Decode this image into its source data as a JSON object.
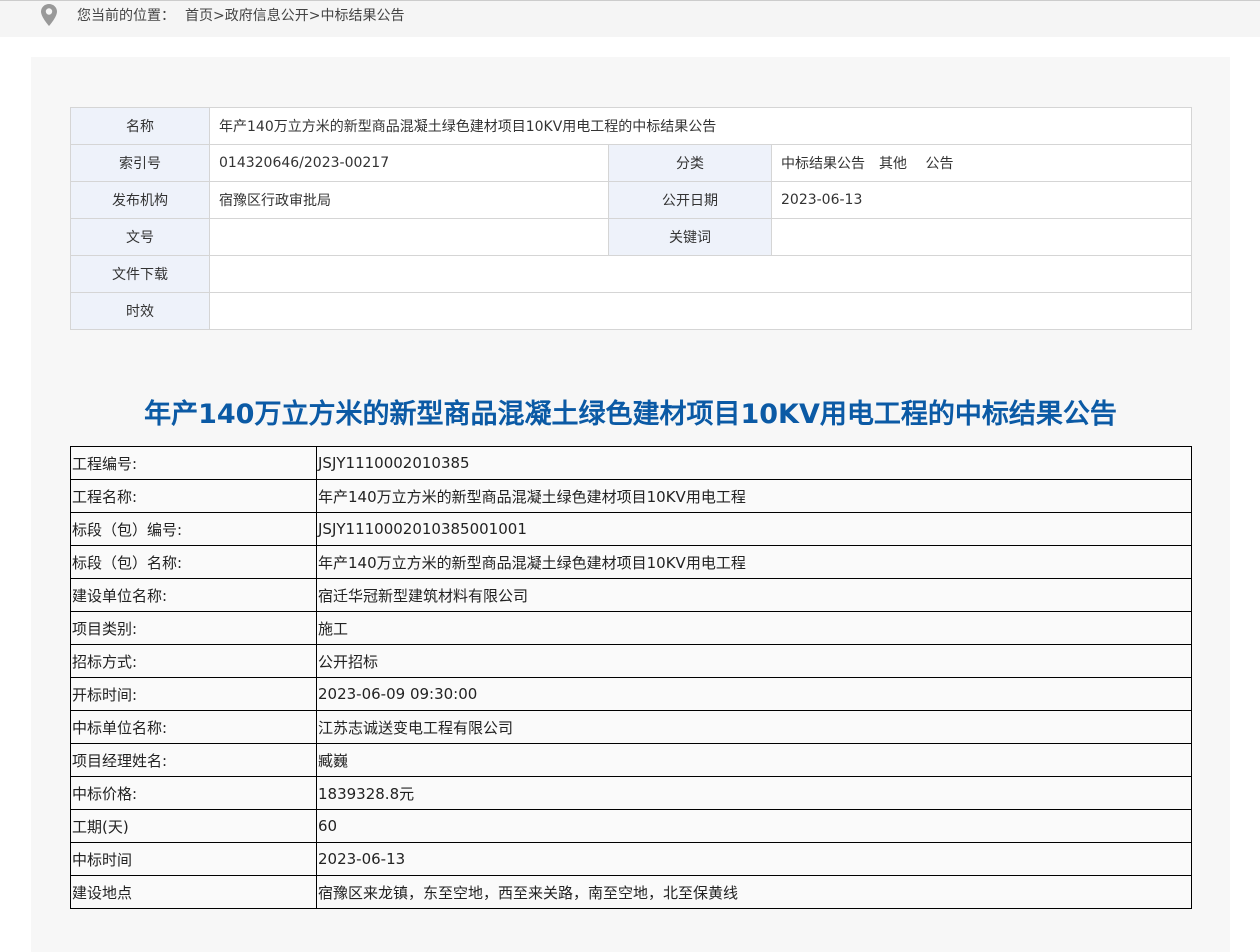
{
  "breadcrumb": {
    "label": "您当前的位置：",
    "path": "首页>政府信息公开>中标结果公告"
  },
  "info": {
    "name_label": "名称",
    "name": "年产140万立方米的新型商品混凝土绿色建材项目10KV用电工程的中标结果公告",
    "index_label": "索引号",
    "index": "014320646/2023-00217",
    "category_label": "分类",
    "category": "中标结果公告　其他　 公告",
    "publisher_label": "发布机构",
    "publisher": "宿豫区行政审批局",
    "date_label": "公开日期",
    "date": "2023-06-13",
    "docno_label": "文号",
    "docno": "",
    "keywords_label": "关键词",
    "keywords": "",
    "download_label": "文件下载",
    "download": "",
    "validity_label": "时效",
    "validity": ""
  },
  "title": "年产140万立方米的新型商品混凝土绿色建材项目10KV用电工程的中标结果公告",
  "details": [
    {
      "k": "工程编号:",
      "v": "JSJY1110002010385"
    },
    {
      "k": "工程名称:",
      "v": "年产140万立方米的新型商品混凝土绿色建材项目10KV用电工程"
    },
    {
      "k": "标段（包）编号:",
      "v": "JSJY1110002010385001001"
    },
    {
      "k": "标段（包）名称:",
      "v": "年产140万立方米的新型商品混凝土绿色建材项目10KV用电工程"
    },
    {
      "k": "建设单位名称:",
      "v": "宿迁华冠新型建筑材料有限公司"
    },
    {
      "k": "项目类别:",
      "v": "施工"
    },
    {
      "k": "招标方式:",
      "v": "公开招标"
    },
    {
      "k": "开标时间:",
      "v": "2023-06-09 09:30:00"
    },
    {
      "k": "中标单位名称:",
      "v": "江苏志诚送变电工程有限公司"
    },
    {
      "k": "项目经理姓名:",
      "v": "臧巍"
    },
    {
      "k": "中标价格:",
      "v": "1839328.8元"
    },
    {
      "k": "工期(天)",
      "v": "60"
    },
    {
      "k": "中标时间",
      "v": "2023-06-13"
    },
    {
      "k": "建设地点",
      "v": "宿豫区来龙镇，东至空地，西至来关路，南至空地，北至保黄线"
    }
  ]
}
